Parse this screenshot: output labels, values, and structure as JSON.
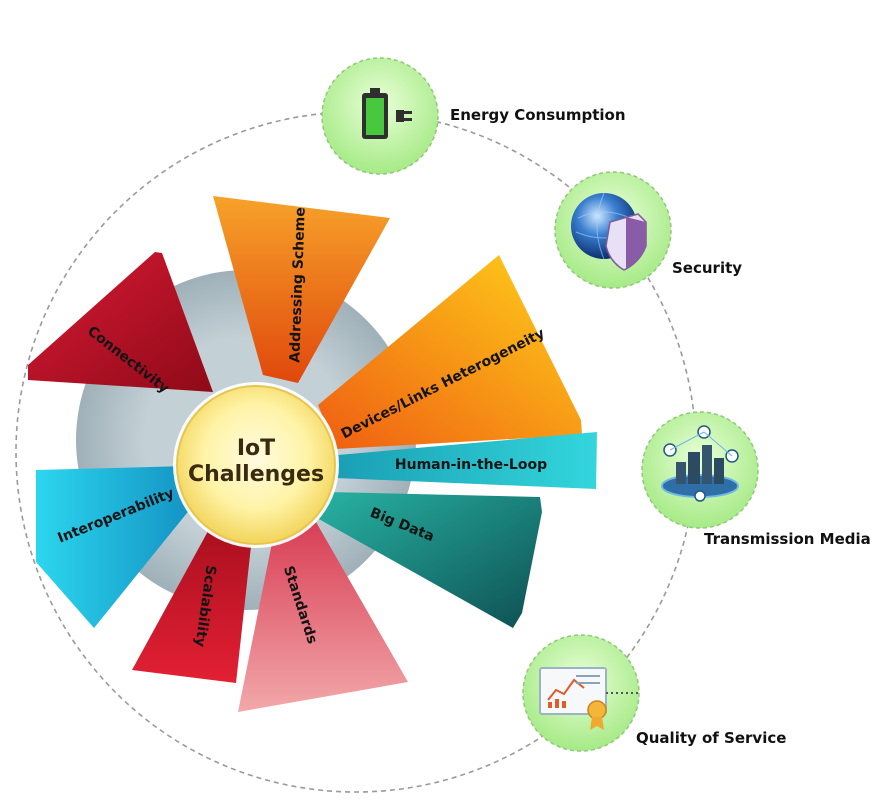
{
  "center": {
    "line1": "IoT",
    "line2": "Challenges"
  },
  "segments": [
    {
      "id": "addressing",
      "label": "Addressing Scheme",
      "color_light": "#f7a22a",
      "color_dark": "#e0480c"
    },
    {
      "id": "devices",
      "label": "Devices/Links Heterogeneity",
      "color_light": "#ffd21a",
      "color_dark": "#ef5d12"
    },
    {
      "id": "hitl",
      "label": "Human-in-the-Loop",
      "color_light": "#33d6dc",
      "color_dark": "#1a9fb4"
    },
    {
      "id": "bigdata",
      "label": "Big Data",
      "color_light": "#27b3a3",
      "color_dark": "#0e4f52"
    },
    {
      "id": "standards",
      "label": "Standards",
      "color_light": "#f2a8aa",
      "color_dark": "#d83e55"
    },
    {
      "id": "scalability",
      "label": "Scalability",
      "color_light": "#e32034",
      "color_dark": "#a80f1e"
    },
    {
      "id": "interop",
      "label": "Interoperability",
      "color_light": "#2cd6ee",
      "color_dark": "#1493c4"
    },
    {
      "id": "connectivity",
      "label": "Connectivity",
      "color_light": "#d91a35",
      "color_dark": "#8e0a18"
    }
  ],
  "external_items": [
    {
      "id": "energy",
      "label": "Energy Consumption",
      "icon": "battery-plug-icon"
    },
    {
      "id": "security",
      "label": "Security",
      "icon": "globe-shield-icon"
    },
    {
      "id": "transmission",
      "label": "Transmission Media",
      "icon": "smart-city-wifi-icon"
    },
    {
      "id": "qos",
      "label": "Quality of Service",
      "icon": "certificate-chart-icon"
    }
  ],
  "colors": {
    "ring": "#9a9a9a",
    "bubble_fill": "#bff29a",
    "bubble_border": "#8fc97a",
    "hub_disk": "#b4c2c9"
  }
}
